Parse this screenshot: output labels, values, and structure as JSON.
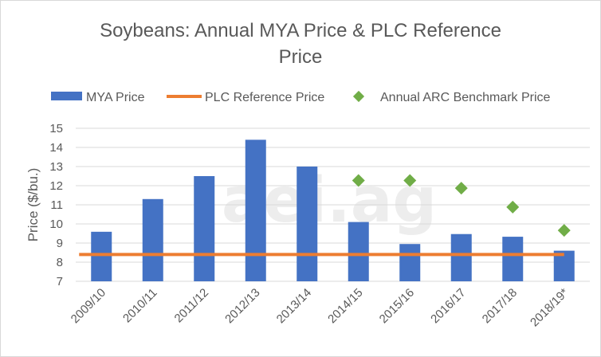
{
  "chart_data": {
    "type": "bar",
    "title_line1": "Soybeans:  Annual MYA Price & PLC Reference",
    "title_line2": "Price",
    "ylabel": "Price ($/bu.)",
    "xlabel": "",
    "ylim": [
      7,
      15
    ],
    "yticks": [
      7,
      8,
      9,
      10,
      11,
      12,
      13,
      14,
      15
    ],
    "grid": true,
    "legend_position": "top",
    "watermark": "aei.ag",
    "categories": [
      "2009/10",
      "2010/11",
      "2011/12",
      "2012/13",
      "2013/14",
      "2014/15",
      "2015/16",
      "2016/17",
      "2017/18",
      "2018/19*"
    ],
    "series": [
      {
        "name": "MYA Price",
        "kind": "bar",
        "color": "#4472c4",
        "values": [
          9.59,
          11.3,
          12.5,
          14.4,
          13.0,
          10.1,
          8.95,
          9.47,
          9.33,
          8.6
        ]
      },
      {
        "name": "PLC Reference Price",
        "kind": "line",
        "color": "#ed7d31",
        "values": [
          8.4,
          8.4,
          8.4,
          8.4,
          8.4,
          8.4,
          8.4,
          8.4,
          8.4,
          8.4
        ]
      },
      {
        "name": "Annual ARC Benchmark Price",
        "kind": "marker",
        "color": "#70ad47",
        "values": [
          null,
          null,
          null,
          null,
          null,
          12.27,
          12.27,
          11.87,
          10.88,
          9.66
        ]
      }
    ]
  }
}
